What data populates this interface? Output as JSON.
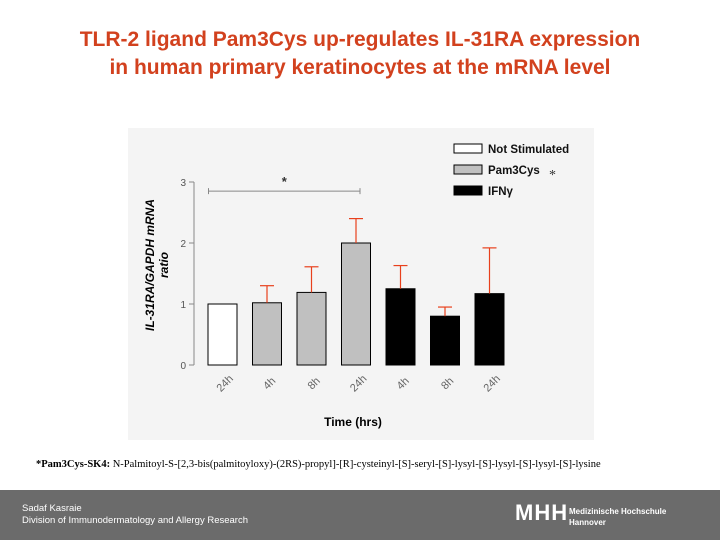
{
  "title": {
    "line1": "TLR-2 ligand Pam3Cys up-regulates IL-31RA expression",
    "line2": "in human primary keratinocytes at the mRNA level"
  },
  "chart_data": {
    "type": "bar",
    "ylabel": "IL-31RA/GAPDH mRNA ratio",
    "xlabel": "Time (hrs)",
    "ylim": [
      0,
      3
    ],
    "yticks": [
      "0",
      "1",
      "2",
      "3"
    ],
    "grid": false,
    "legend_position": "top-right",
    "categories": [
      "24h",
      "4h",
      "8h",
      "24h",
      "4h",
      "8h",
      "24h"
    ],
    "groups": [
      "Not Stimulated",
      "Pam3Cys",
      "Pam3Cys",
      "Pam3Cys",
      "IFNγ",
      "IFNγ",
      "IFNγ"
    ],
    "values": [
      1.0,
      1.02,
      1.19,
      2.0,
      1.25,
      0.8,
      1.17
    ],
    "errors": [
      0.0,
      0.28,
      0.42,
      0.4,
      0.38,
      0.15,
      0.75
    ],
    "legend": [
      {
        "label": "Not Stimulated",
        "color": "#ffffff"
      },
      {
        "label": "Pam3Cys",
        "color": "#c0c0c0",
        "note": "*"
      },
      {
        "label": "IFNγ",
        "color": "#000000"
      }
    ],
    "significance": {
      "label": "*",
      "from_bar": 0,
      "to_bar": 3,
      "y": 2.85
    },
    "colors": {
      "Not Stimulated": "#ffffff",
      "Pam3Cys": "#c0c0c0",
      "IFNγ": "#000000",
      "error_bar": "#e8401c",
      "axis": "#888888"
    }
  },
  "footnote": {
    "bold": "*Pam3Cys-SK4:",
    "text": " N-Palmitoyl-S-[2,3-bis(palmitoyloxy)-(2RS)-propyl]-[R]-cysteinyl-[S]-seryl-[S]-lysyl-[S]-lysyl-[S]-lysyl-[S]-lysine"
  },
  "footer": {
    "author": "Sadaf Kasraie",
    "department": "Division of Immunodermatology and Allergy Research",
    "logo_mark": "MHH",
    "logo_line1": "Medizinische Hochschule",
    "logo_line2": "Hannover"
  }
}
